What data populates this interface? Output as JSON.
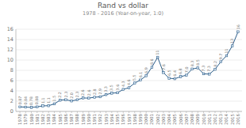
{
  "chart_data": {
    "type": "line",
    "title": "Rand vs dollar",
    "subtitle": "1978 - 2016 (Year-on-year, 1:0)",
    "x": [
      1978,
      1979,
      1980,
      1981,
      1982,
      1983,
      1984,
      1985,
      1986,
      1987,
      1988,
      1989,
      1990,
      1991,
      1992,
      1993,
      1994,
      1995,
      1996,
      1997,
      1998,
      1999,
      2000,
      2001,
      2002,
      2003,
      2004,
      2005,
      2006,
      2007,
      2008,
      2009,
      2010,
      2011,
      2012,
      2013,
      2014,
      2015,
      2016
    ],
    "values": [
      0.87,
      0.84,
      0.78,
      0.88,
      1.08,
      1.11,
      1.47,
      2.19,
      2.27,
      2.04,
      2.27,
      2.62,
      2.59,
      2.76,
      2.85,
      3.27,
      3.55,
      3.63,
      4.29,
      4.61,
      5.53,
      6.11,
      6.94,
      8.61,
      10.54,
      7.57,
      6.45,
      6.36,
      6.77,
      7.05,
      8.26,
      8.47,
      7.32,
      7.26,
      8.2,
      9.66,
      10.84,
      12.76,
      15.5
    ],
    "value_labels": [
      "0.87",
      "0.84",
      "0.78",
      "0.88",
      "1.1",
      "1.1",
      "1.5",
      "2.2",
      "2.3",
      "2.0",
      "2.3",
      "2.6",
      "2.6",
      "2.8",
      "2.9",
      "3.3",
      "3.5",
      "3.6",
      "4.3",
      "4.6",
      "5.5",
      "6.1",
      "6.9",
      "8.6",
      "11",
      "7.6",
      "6.5",
      "6.4",
      "6.8",
      "7.0",
      "8.3",
      "8.5",
      "7.3",
      "7.3",
      "8.2",
      "9.7",
      "11",
      "13",
      "16"
    ],
    "data_labels": true,
    "color": "#2e5f8a",
    "marker": "square",
    "xlim": [
      1977.3,
      2016.7
    ],
    "xticks": [
      1978,
      1979,
      1980,
      1981,
      1982,
      1983,
      1984,
      1985,
      1986,
      1987,
      1988,
      1989,
      1990,
      1991,
      1992,
      1993,
      1994,
      1995,
      1996,
      1997,
      1998,
      1999,
      2000,
      2001,
      2002,
      2003,
      2004,
      2005,
      2006,
      2007,
      2008,
      2009,
      2010,
      2011,
      2012,
      2013,
      2014,
      2015,
      2016
    ],
    "ylim": [
      0,
      16
    ],
    "yticks": [
      0,
      2,
      4,
      6,
      8,
      10,
      12,
      14,
      16
    ],
    "grid": true
  }
}
